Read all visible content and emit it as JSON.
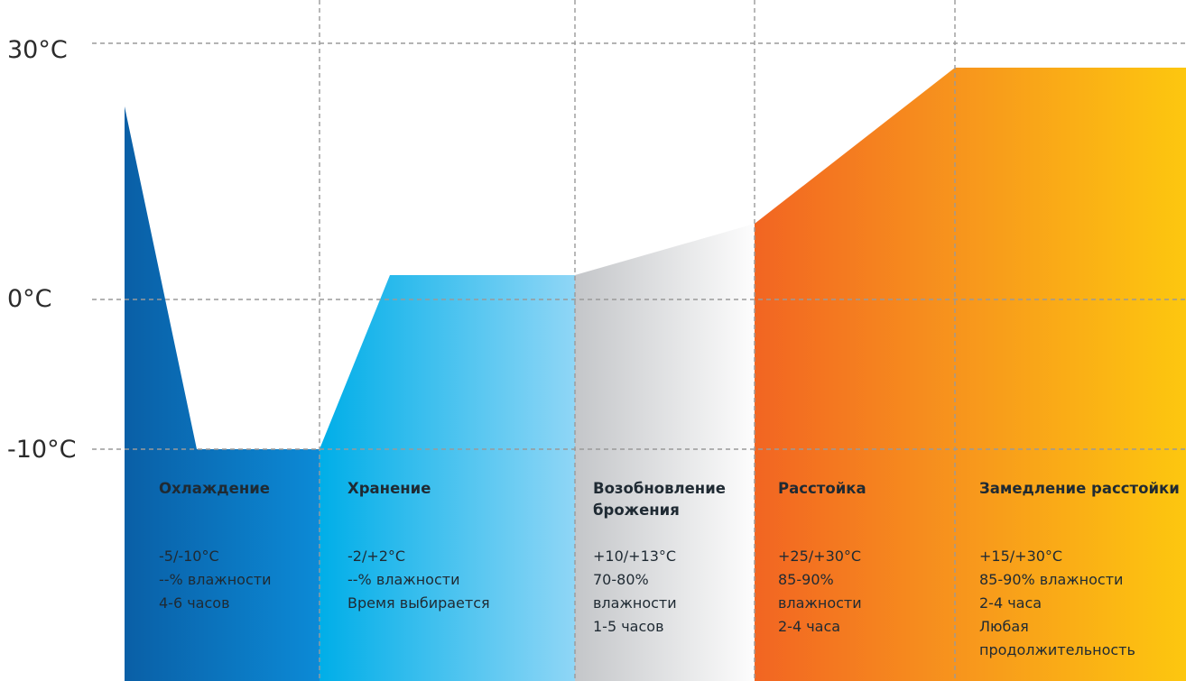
{
  "y_axis": {
    "labels": [
      "30°C",
      "0°C",
      "-10°C"
    ]
  },
  "colors": {
    "cooling_dark": "#0a5fa6",
    "cooling_light": "#0c8ad6",
    "storage_start": "#00aee8",
    "storage_end": "#8fd6f6",
    "resume_start": "#c4c6c9",
    "resume_end": "#fdfdfd",
    "proof_start": "#f26522",
    "proof_end": "#f7941d",
    "retard_start": "#f7941d",
    "retard_end": "#fdc70f",
    "grid": "#9a9a9a"
  },
  "phases": [
    {
      "title": "Охлаждение",
      "lines": [
        "-5/-10°C",
        "--% влажности",
        "4-6 часов"
      ]
    },
    {
      "title": "Хранение",
      "lines": [
        "-2/+2°C",
        "--% влажности",
        "Время выбирается"
      ]
    },
    {
      "title": "Возобновление брожения",
      "lines": [
        "+10/+13°C",
        "70-80%",
        "влажности",
        "1-5 часов"
      ]
    },
    {
      "title": "Расстойка",
      "lines": [
        "+25/+30°C",
        "85-90%",
        "влажности",
        "2-4 часа"
      ]
    },
    {
      "title": "Замедление расстойки",
      "lines": [
        "+15/+30°C",
        "85-90% влажности",
        "2-4 часа",
        "Любая",
        "продолжительность"
      ]
    }
  ]
}
